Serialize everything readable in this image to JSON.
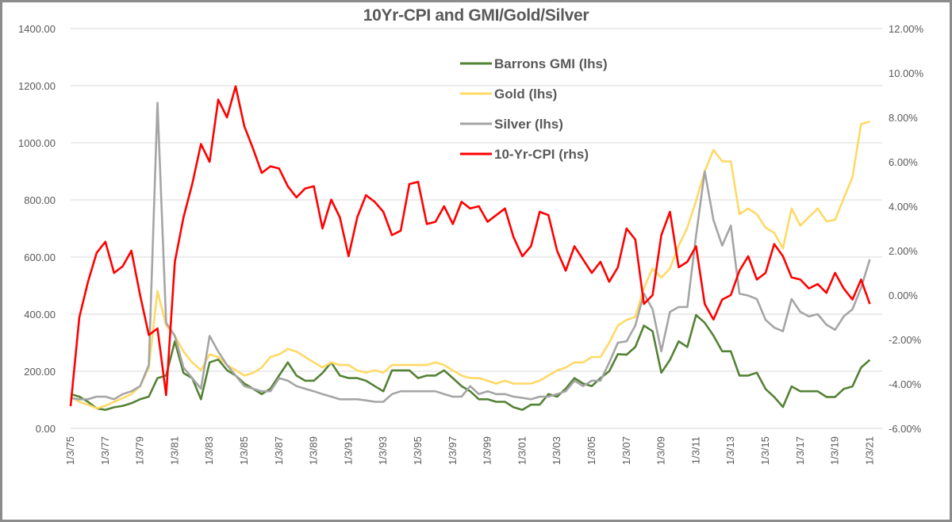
{
  "chart_data": {
    "type": "line",
    "title": "10Yr-CPI and GMI/Gold/Silver",
    "legend_position": "top-center",
    "grid": "horizontal",
    "x_tick_labels": [
      "1/3/75",
      "1/3/77",
      "1/3/79",
      "1/3/81",
      "1/3/83",
      "1/3/85",
      "1/3/87",
      "1/3/89",
      "1/3/91",
      "1/3/93",
      "1/3/95",
      "1/3/97",
      "1/3/99",
      "1/3/01",
      "1/3/03",
      "1/3/05",
      "1/3/07",
      "1/3/09",
      "1/3/11",
      "1/3/13",
      "1/3/15",
      "1/3/17",
      "1/3/19",
      "1/3/21"
    ],
    "y_left": {
      "range": [
        0,
        1400
      ],
      "tick_labels": [
        "0.00",
        "200.00",
        "400.00",
        "600.00",
        "800.00",
        "1000.00",
        "1200.00",
        "1400.00"
      ]
    },
    "y_right": {
      "range": [
        -6,
        12
      ],
      "unit": "%",
      "tick_labels": [
        "-6.00%",
        "-4.00%",
        "-2.00%",
        "0.00%",
        "2.00%",
        "4.00%",
        "6.00%",
        "8.00%",
        "10.00%",
        "12.00%"
      ]
    },
    "x": [
      "1975-01",
      "1975-07",
      "1976-01",
      "1976-07",
      "1977-01",
      "1977-07",
      "1978-01",
      "1978-07",
      "1979-01",
      "1979-07",
      "1980-01",
      "1980-07",
      "1981-01",
      "1981-07",
      "1982-01",
      "1982-07",
      "1983-01",
      "1983-07",
      "1984-01",
      "1984-07",
      "1985-01",
      "1985-07",
      "1986-01",
      "1986-07",
      "1987-01",
      "1987-07",
      "1988-01",
      "1988-07",
      "1989-01",
      "1989-07",
      "1990-01",
      "1990-07",
      "1991-01",
      "1991-07",
      "1992-01",
      "1992-07",
      "1993-01",
      "1993-07",
      "1994-01",
      "1994-07",
      "1995-01",
      "1995-07",
      "1996-01",
      "1996-07",
      "1997-01",
      "1997-07",
      "1998-01",
      "1998-07",
      "1999-01",
      "1999-07",
      "2000-01",
      "2000-07",
      "2001-01",
      "2001-07",
      "2002-01",
      "2002-07",
      "2003-01",
      "2003-07",
      "2004-01",
      "2004-07",
      "2005-01",
      "2005-07",
      "2006-01",
      "2006-07",
      "2007-01",
      "2007-07",
      "2008-01",
      "2008-07",
      "2009-01",
      "2009-07",
      "2010-01",
      "2010-07",
      "2011-01",
      "2011-07",
      "2012-01",
      "2012-07",
      "2013-01",
      "2013-07",
      "2014-01",
      "2014-07",
      "2015-01",
      "2015-07",
      "2016-01",
      "2016-07",
      "2017-01",
      "2017-07",
      "2018-01",
      "2018-07",
      "2019-01",
      "2019-07",
      "2020-01",
      "2020-07",
      "2021-01"
    ],
    "series": [
      {
        "name": "Barrons GMI (lhs)",
        "axis": "left",
        "color": "#548235",
        "values": [
          120,
          111,
          93,
          70,
          65,
          74,
          79,
          88,
          102,
          111,
          176,
          185,
          305,
          194,
          176,
          102,
          231,
          241,
          204,
          185,
          157,
          139,
          120,
          139,
          185,
          231,
          185,
          167,
          167,
          194,
          231,
          185,
          176,
          176,
          167,
          148,
          130,
          203,
          203,
          203,
          176,
          185,
          185,
          203,
          176,
          148,
          130,
          102,
          102,
          93,
          93,
          74,
          65,
          83,
          83,
          120,
          111,
          139,
          176,
          157,
          148,
          176,
          200,
          260,
          258,
          285,
          360,
          340,
          195,
          240,
          305,
          285,
          397,
          370,
          325,
          270,
          270,
          185,
          185,
          195,
          138,
          110,
          75,
          147,
          130,
          130,
          130,
          110,
          110,
          138,
          147,
          213,
          240
        ]
      },
      {
        "name": "Gold (lhs)",
        "axis": "left",
        "color": "#FFD966",
        "values": [
          111,
          93,
          83,
          70,
          79,
          93,
          106,
          120,
          148,
          213,
          481,
          361,
          324,
          269,
          231,
          204,
          259,
          250,
          222,
          204,
          185,
          194,
          213,
          250,
          259,
          278,
          269,
          250,
          231,
          213,
          231,
          222,
          222,
          203,
          195,
          203,
          195,
          222,
          222,
          222,
          222,
          222,
          231,
          222,
          203,
          185,
          176,
          176,
          167,
          157,
          167,
          157,
          157,
          157,
          167,
          185,
          203,
          213,
          231,
          231,
          250,
          250,
          300,
          360,
          380,
          390,
          492,
          560,
          528,
          560,
          640,
          703,
          797,
          900,
          975,
          935,
          935,
          750,
          770,
          750,
          703,
          685,
          630,
          770,
          710,
          740,
          770,
          725,
          730,
          805,
          880,
          1065,
          1075
        ]
      },
      {
        "name": "Silver (lhs)",
        "axis": "left",
        "color": "#A5A5A5",
        "values": [
          106,
          102,
          102,
          111,
          111,
          102,
          120,
          130,
          148,
          222,
          1140,
          370,
          324,
          213,
          176,
          139,
          324,
          269,
          222,
          185,
          148,
          139,
          130,
          130,
          176,
          167,
          148,
          139,
          130,
          120,
          111,
          102,
          102,
          102,
          98,
          93,
          93,
          120,
          130,
          130,
          130,
          130,
          130,
          120,
          111,
          111,
          148,
          120,
          130,
          120,
          120,
          111,
          107,
          102,
          111,
          111,
          120,
          130,
          167,
          148,
          167,
          167,
          230,
          300,
          305,
          360,
          472,
          417,
          270,
          408,
          425,
          425,
          675,
          900,
          730,
          640,
          710,
          472,
          465,
          453,
          380,
          353,
          340,
          453,
          408,
          392,
          400,
          363,
          345,
          392,
          417,
          492,
          592
        ]
      },
      {
        "name": "10-Yr-CPI (rhs)",
        "axis": "right",
        "color": "#FF0000",
        "values": [
          -5.0,
          -1.0,
          0.6,
          1.9,
          2.4,
          1.0,
          1.3,
          2.0,
          0.0,
          -1.8,
          -1.5,
          -4.5,
          1.5,
          3.5,
          5.0,
          6.8,
          6.0,
          8.8,
          8.0,
          9.4,
          7.6,
          6.6,
          5.5,
          5.8,
          5.7,
          4.9,
          4.4,
          4.8,
          4.9,
          3.0,
          4.3,
          3.5,
          1.75,
          3.5,
          4.5,
          4.2,
          3.75,
          2.7,
          2.9,
          5.0,
          5.1,
          3.2,
          3.3,
          4.0,
          3.2,
          4.2,
          3.9,
          4.0,
          3.3,
          3.6,
          3.9,
          2.6,
          1.75,
          2.2,
          3.75,
          3.6,
          2.0,
          1.1,
          2.2,
          1.6,
          1.0,
          1.5,
          0.6,
          1.25,
          3.0,
          2.5,
          -0.4,
          0.0,
          2.7,
          3.75,
          1.25,
          1.5,
          2.2,
          -0.4,
          -1.1,
          -0.2,
          0.0,
          1.1,
          1.75,
          0.7,
          1.0,
          2.3,
          1.75,
          0.8,
          0.7,
          0.3,
          0.5,
          0.1,
          1.0,
          0.3,
          -0.2,
          0.7,
          -0.4
        ]
      }
    ]
  }
}
